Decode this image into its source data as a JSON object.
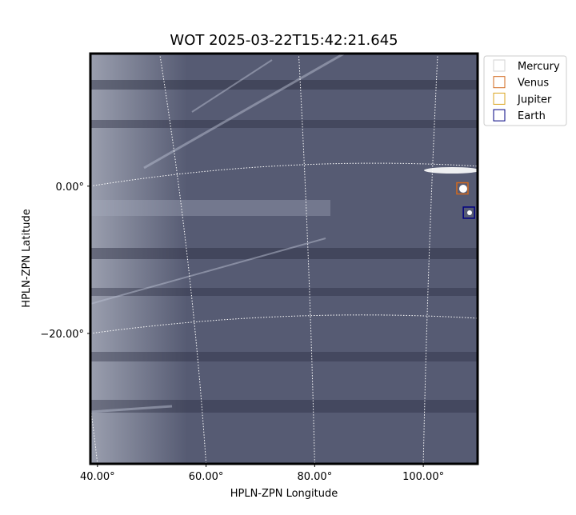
{
  "chart_data": {
    "type": "image",
    "title": "WOT 2025-03-22T15:42:21.645",
    "x_label": "HPLN-ZPN Longitude",
    "y_label": "HPLN-ZPN Latitude",
    "xlim": [
      38.7,
      110
    ],
    "ylim": [
      -37.7,
      18
    ],
    "xticks": [
      {
        "value": 40,
        "label": "40.00°"
      },
      {
        "value": 60,
        "label": "60.00°"
      },
      {
        "value": 80,
        "label": "80.00°"
      },
      {
        "value": 100,
        "label": "100.00°"
      }
    ],
    "yticks": [
      {
        "value": 0,
        "label": "0.00°"
      },
      {
        "value": -20,
        "label": "−20.00°"
      }
    ],
    "grid": true,
    "legend": "upper right outside",
    "series": [
      {
        "name": "Mercury",
        "color": "#d3d3d3",
        "x": [],
        "y": []
      },
      {
        "name": "Venus",
        "color": "#d2691e",
        "x": [
          107.2
        ],
        "y": [
          -0.3
        ]
      },
      {
        "name": "Jupiter",
        "color": "#daa520",
        "x": [],
        "y": []
      },
      {
        "name": "Earth",
        "color": "#000080",
        "x": [
          108.4
        ],
        "y": [
          -3.6
        ]
      }
    ]
  }
}
